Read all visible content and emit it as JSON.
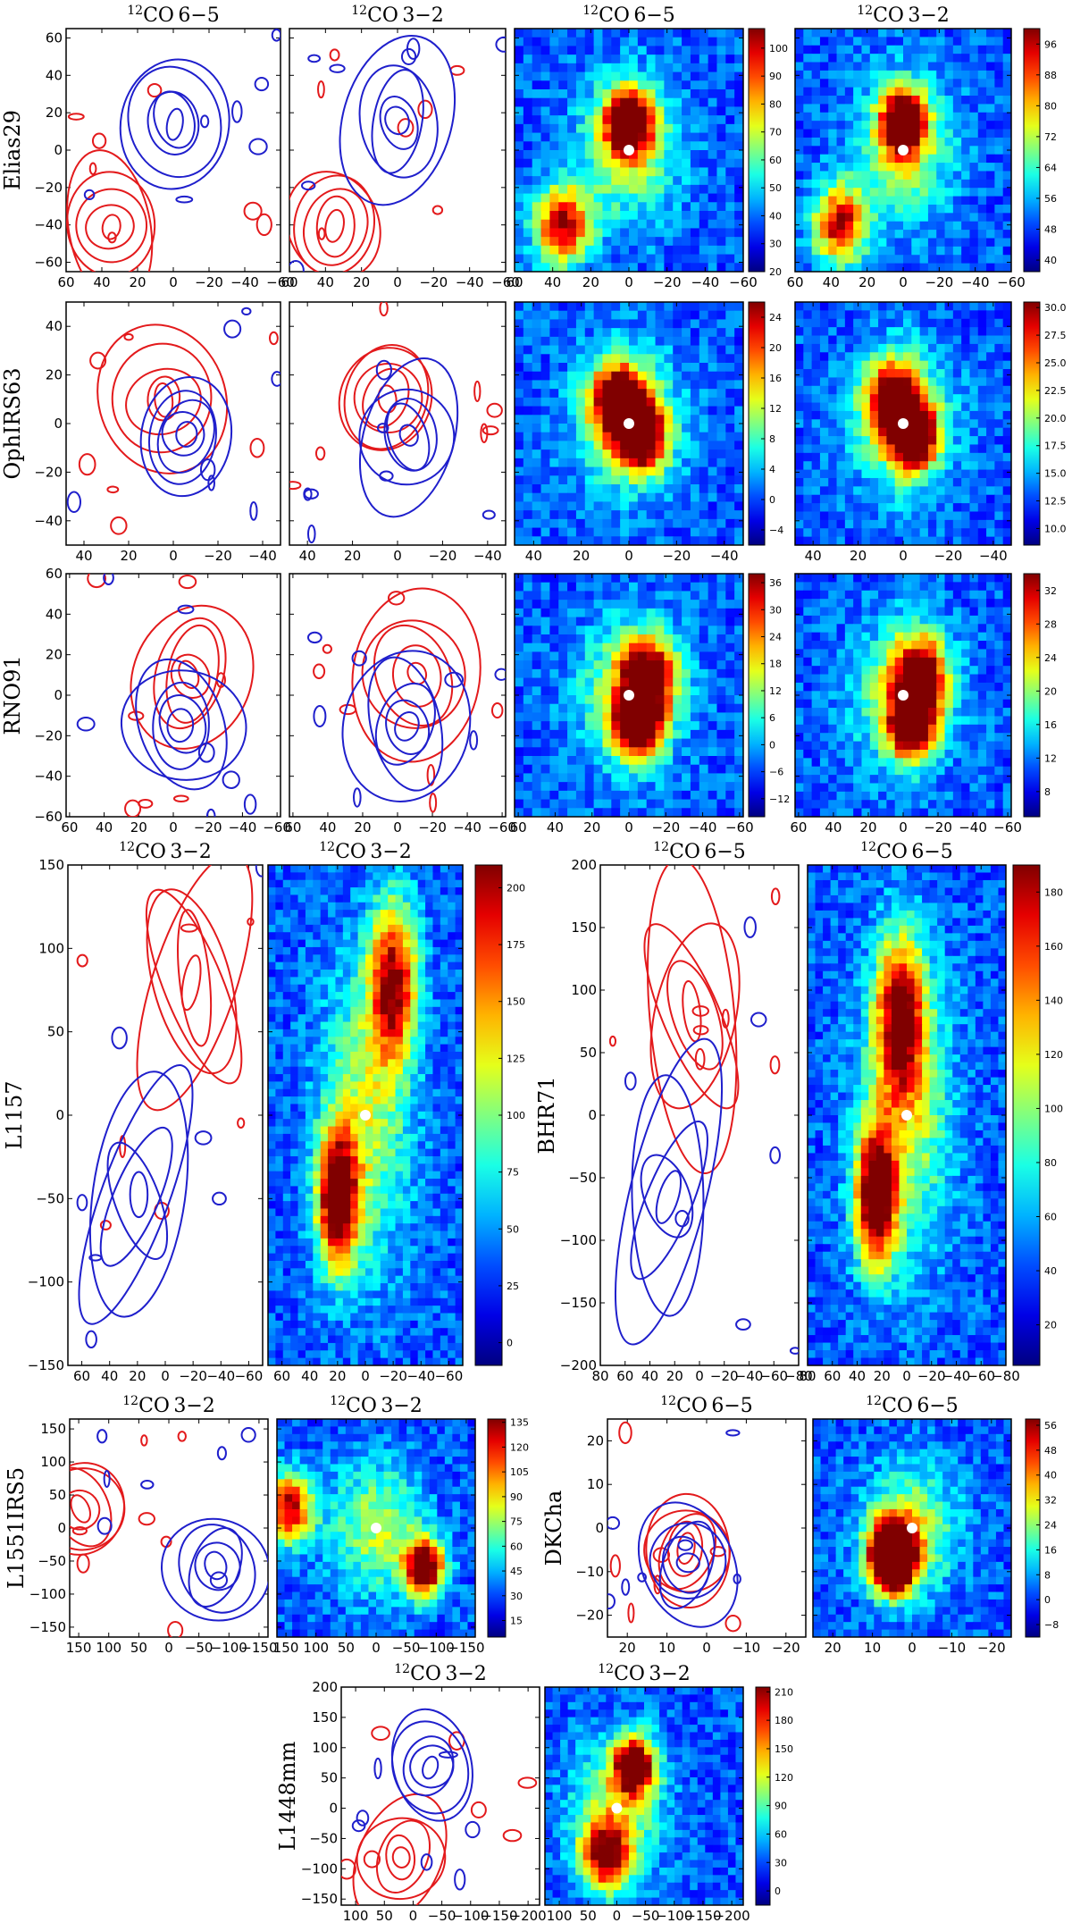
{
  "figure_caption": "",
  "chart_data": [
    {
      "type": "contour+heatmap",
      "source": "Elias29",
      "row_label": "Elias29",
      "titles": {
        "co65_contour": "CO 6-5",
        "co32_contour": "CO 3-2",
        "co65_map": "CO 6-5",
        "co32_map": "CO 3-2"
      },
      "iso_sup": "12",
      "xlim": [
        60,
        -60
      ],
      "ylim": [
        -65,
        65
      ],
      "x_ticks": [
        "60",
        "40",
        "20",
        "0",
        "-20",
        "-40",
        "-60"
      ],
      "y_ticks": [
        "-60",
        "-40",
        "-20",
        "0",
        "20",
        "40",
        "60"
      ],
      "colorbar_co65": {
        "ticks": [
          "20",
          "30",
          "40",
          "50",
          "60",
          "70",
          "80",
          "90",
          "100"
        ],
        "range": [
          20,
          107
        ]
      },
      "colorbar_co32": {
        "ticks": [
          "40",
          "48",
          "56",
          "64",
          "72",
          "80",
          "88",
          "96"
        ],
        "range": [
          37,
          100
        ]
      },
      "red_lobe_peak": [
        35,
        -40
      ],
      "blue_lobe_peak": [
        0,
        15
      ],
      "colors": {
        "red": "#e31a1c",
        "blue": "#1f1fcc"
      }
    },
    {
      "type": "contour+heatmap",
      "source": "OphIRS63",
      "row_label": "OphIRS63",
      "titles": {},
      "xlim": [
        48,
        -48
      ],
      "ylim": [
        -50,
        50
      ],
      "x_ticks": [
        "40",
        "20",
        "0",
        "-20",
        "-40"
      ],
      "y_ticks": [
        "-40",
        "-20",
        "0",
        "20",
        "40"
      ],
      "colorbar_co65": {
        "ticks": [
          "-4",
          "0",
          "4",
          "8",
          "12",
          "16",
          "20",
          "24"
        ],
        "range": [
          -6,
          26
        ]
      },
      "colorbar_co32": {
        "ticks": [
          "10.0",
          "12.5",
          "15.0",
          "17.5",
          "20.0",
          "22.5",
          "25.0",
          "27.5",
          "30.0"
        ],
        "range": [
          8.5,
          30.5
        ]
      },
      "red_lobe_peak": [
        5,
        10
      ],
      "blue_lobe_peak": [
        -5,
        -5
      ],
      "colors": {
        "red": "#e31a1c",
        "blue": "#1f1fcc"
      }
    },
    {
      "type": "contour+heatmap",
      "source": "RNO91",
      "row_label": "RNO91",
      "titles": {},
      "xlim": [
        62,
        -62
      ],
      "ylim": [
        -60,
        60
      ],
      "x_ticks": [
        "60",
        "40",
        "20",
        "0",
        "-20",
        "-40",
        "-60"
      ],
      "y_ticks": [
        "-60",
        "-40",
        "-20",
        "0",
        "20",
        "40",
        "60"
      ],
      "colorbar_co65": {
        "ticks": [
          "-12",
          "-6",
          "0",
          "6",
          "12",
          "18",
          "24",
          "30",
          "36"
        ],
        "range": [
          -16,
          38
        ]
      },
      "colorbar_co32": {
        "ticks": [
          "8",
          "12",
          "16",
          "20",
          "24",
          "28",
          "32"
        ],
        "range": [
          5,
          34
        ]
      },
      "red_lobe_peak": [
        -10,
        10
      ],
      "blue_lobe_peak": [
        -5,
        -15
      ],
      "colors": {
        "red": "#e31a1c",
        "blue": "#1f1fcc"
      }
    },
    {
      "type": "contour+heatmap",
      "source": "L1157",
      "row_label": "L1157",
      "titles": {
        "contour": "CO 3-2",
        "map": "CO 3-2"
      },
      "xlim": [
        70,
        -70
      ],
      "ylim": [
        -150,
        150
      ],
      "x_ticks": [
        "60",
        "40",
        "20",
        "0",
        "-20",
        "-40",
        "-60"
      ],
      "y_ticks": [
        "-150",
        "-100",
        "-50",
        "0",
        "50",
        "100",
        "150"
      ],
      "colorbar": {
        "ticks": [
          "0",
          "25",
          "50",
          "75",
          "100",
          "125",
          "150",
          "175",
          "200"
        ],
        "range": [
          -10,
          210
        ]
      },
      "red_lobe_peak": [
        -20,
        80
      ],
      "blue_lobe_peak": [
        20,
        -50
      ]
    },
    {
      "type": "contour+heatmap",
      "source": "BHR71",
      "row_label": "BHR71",
      "titles": {
        "contour": "CO 6-5",
        "map": "CO 6-5"
      },
      "xlim": [
        80,
        -80
      ],
      "ylim": [
        -200,
        200
      ],
      "x_ticks": [
        "80",
        "60",
        "40",
        "20",
        "0",
        "-20",
        "-40",
        "-60",
        "-80"
      ],
      "y_ticks": [
        "-200",
        "-150",
        "-100",
        "-50",
        "0",
        "50",
        "100",
        "150",
        "200"
      ],
      "colorbar": {
        "ticks": [
          "20",
          "40",
          "60",
          "80",
          "100",
          "120",
          "140",
          "160",
          "180"
        ],
        "range": [
          5,
          190
        ]
      },
      "red_lobe_peak": [
        5,
        80
      ],
      "blue_lobe_peak": [
        25,
        -65
      ]
    },
    {
      "type": "contour+heatmap",
      "source": "L1551IRS5",
      "row_label": "L1551IRS5",
      "titles": {
        "contour": "CO 3-2",
        "map": "CO 3-2"
      },
      "xlim": [
        165,
        -165
      ],
      "ylim": [
        -165,
        165
      ],
      "x_ticks": [
        "150",
        "100",
        "50",
        "0",
        "-50",
        "-100",
        "-150"
      ],
      "y_ticks": [
        "-150",
        "-100",
        "-50",
        "0",
        "50",
        "100",
        "150"
      ],
      "colorbar": {
        "ticks": [
          "15",
          "30",
          "45",
          "60",
          "75",
          "90",
          "105",
          "120",
          "135"
        ],
        "range": [
          5,
          137
        ]
      },
      "red_lobe_peak": [
        145,
        30
      ],
      "blue_lobe_peak": [
        -80,
        -60
      ]
    },
    {
      "type": "contour+heatmap",
      "source": "DKCha",
      "row_label": "DKCha",
      "titles": {
        "contour": "CO 6-5",
        "map": "CO 6-5"
      },
      "xlim": [
        25,
        -25
      ],
      "ylim": [
        -25,
        25
      ],
      "x_ticks": [
        "20",
        "10",
        "0",
        "-10",
        "-20"
      ],
      "y_ticks": [
        "-20",
        "-10",
        "0",
        "10",
        "20"
      ],
      "colorbar": {
        "ticks": [
          "-8",
          "0",
          "8",
          "16",
          "24",
          "32",
          "40",
          "48",
          "56"
        ],
        "range": [
          -12,
          58
        ]
      },
      "red_lobe_peak": [
        5,
        -5
      ],
      "blue_lobe_peak": [
        5,
        -8
      ]
    },
    {
      "type": "contour+heatmap",
      "source": "L1448mm",
      "row_label": "L1448mm",
      "titles": {
        "contour": "CO 3-2",
        "map": "CO 3-2"
      },
      "xlim": [
        125,
        -220
      ],
      "ylim": [
        -160,
        200
      ],
      "x_ticks": [
        "100",
        "50",
        "0",
        "-50",
        "-100",
        "-150",
        "-200"
      ],
      "y_ticks": [
        "-150",
        "-100",
        "-50",
        "0",
        "50",
        "100",
        "150",
        "200"
      ],
      "colorbar": {
        "ticks": [
          "0",
          "30",
          "60",
          "90",
          "120",
          "150",
          "180",
          "210"
        ],
        "range": [
          -15,
          215
        ]
      },
      "red_lobe_peak": [
        20,
        -80
      ],
      "blue_lobe_peak": [
        -30,
        70
      ]
    }
  ]
}
